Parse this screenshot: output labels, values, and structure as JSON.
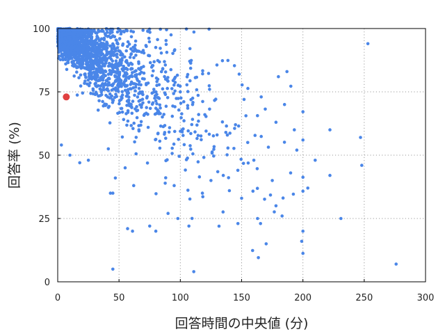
{
  "chart_data": {
    "type": "scatter",
    "xlabel": "回答時間の中央値 (分)",
    "ylabel": "回答率 (%)",
    "xlim": [
      0,
      300
    ],
    "ylim": [
      0,
      100
    ],
    "x_ticks": [
      "0",
      "50",
      "100",
      "150",
      "200",
      "250",
      "300"
    ],
    "y_ticks": [
      "0",
      "25",
      "50",
      "75",
      "100"
    ],
    "grid": true,
    "series_color": "#4a86e8",
    "highlight_color": "#e04040",
    "highlight_point": {
      "x": 7,
      "y": 73
    },
    "sample_points": [
      [
        253,
        94
      ],
      [
        276,
        7
      ],
      [
        247,
        57
      ],
      [
        248,
        46
      ],
      [
        231,
        25
      ],
      [
        222,
        60
      ],
      [
        222,
        42
      ],
      [
        210,
        48
      ],
      [
        204,
        37
      ],
      [
        200,
        20
      ],
      [
        199,
        16
      ],
      [
        200,
        56
      ],
      [
        187,
        83
      ],
      [
        180,
        81
      ],
      [
        170,
        15
      ],
      [
        166,
        73
      ],
      [
        152,
        72
      ],
      [
        148,
        82
      ],
      [
        111,
        4
      ],
      [
        45,
        5
      ],
      [
        57,
        21
      ],
      [
        61,
        20
      ],
      [
        98,
        25
      ],
      [
        107,
        22
      ],
      [
        163,
        25
      ],
      [
        147,
        23
      ],
      [
        150,
        33
      ],
      [
        3,
        54
      ],
      [
        10,
        50
      ],
      [
        18,
        47
      ],
      [
        25,
        48
      ],
      [
        43,
        35
      ],
      [
        45,
        35
      ],
      [
        47,
        41
      ],
      [
        55,
        45
      ],
      [
        62,
        38
      ],
      [
        75,
        22
      ],
      [
        80,
        20
      ],
      [
        90,
        27
      ],
      [
        95,
        38
      ],
      [
        118,
        35
      ],
      [
        125,
        40
      ],
      [
        135,
        42
      ],
      [
        140,
        36
      ],
      [
        175,
        40
      ],
      [
        178,
        30
      ],
      [
        183,
        26
      ],
      [
        190,
        43
      ],
      [
        195,
        52
      ],
      [
        193,
        60
      ],
      [
        185,
        70
      ],
      [
        178,
        63
      ],
      [
        160,
        48
      ],
      [
        155,
        55
      ],
      [
        145,
        62
      ],
      [
        130,
        58
      ],
      [
        120,
        66
      ],
      [
        110,
        70
      ],
      [
        100,
        75
      ],
      [
        88,
        80
      ],
      [
        70,
        85
      ],
      [
        60,
        90
      ],
      [
        40,
        92
      ],
      [
        30,
        95
      ],
      [
        20,
        98
      ],
      [
        10,
        100
      ]
    ],
    "cluster_count": 1800
  }
}
